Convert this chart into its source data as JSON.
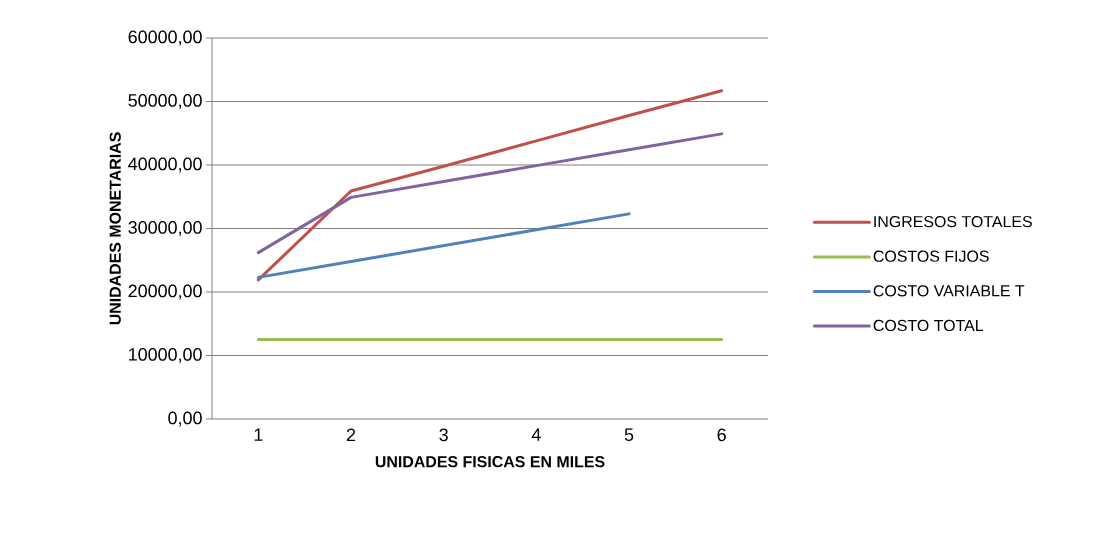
{
  "chart_data": {
    "type": "line",
    "xlabel": "UNIDADES  FISICAS EN MILES",
    "ylabel": "UNIDADES  MONETARIAS",
    "categories": [
      "1",
      "2",
      "3",
      "4",
      "5",
      "6"
    ],
    "ylim": [
      0,
      60000
    ],
    "yticks": [
      {
        "value": 0,
        "label": "0,00"
      },
      {
        "value": 10000,
        "label": "10000,00"
      },
      {
        "value": 20000,
        "label": "20000,00"
      },
      {
        "value": 30000,
        "label": "30000,00"
      },
      {
        "value": 40000,
        "label": "40000,00"
      },
      {
        "value": 50000,
        "label": "50000,00"
      },
      {
        "value": 60000,
        "label": "60000,00"
      }
    ],
    "grid": "y",
    "legend": "right",
    "marker": "none",
    "series": [
      {
        "name": "INGRESOS TOTALES",
        "color": "#c0504d",
        "values": [
          21900,
          35900,
          39800,
          43800,
          47800,
          51700
        ]
      },
      {
        "name": "COSTOS FIJOS",
        "color": "#9bbb59",
        "values": [
          12500,
          12500,
          12500,
          12500,
          12500,
          12500
        ]
      },
      {
        "name": "COSTO VARIABLE T",
        "color": "#4f81bd",
        "values": [
          22300,
          24800,
          27300,
          29800,
          32300,
          null
        ]
      },
      {
        "name": "COSTO TOTAL",
        "color": "#8064a2",
        "values": [
          26200,
          34900,
          37400,
          39900,
          42400,
          44900
        ]
      }
    ]
  }
}
